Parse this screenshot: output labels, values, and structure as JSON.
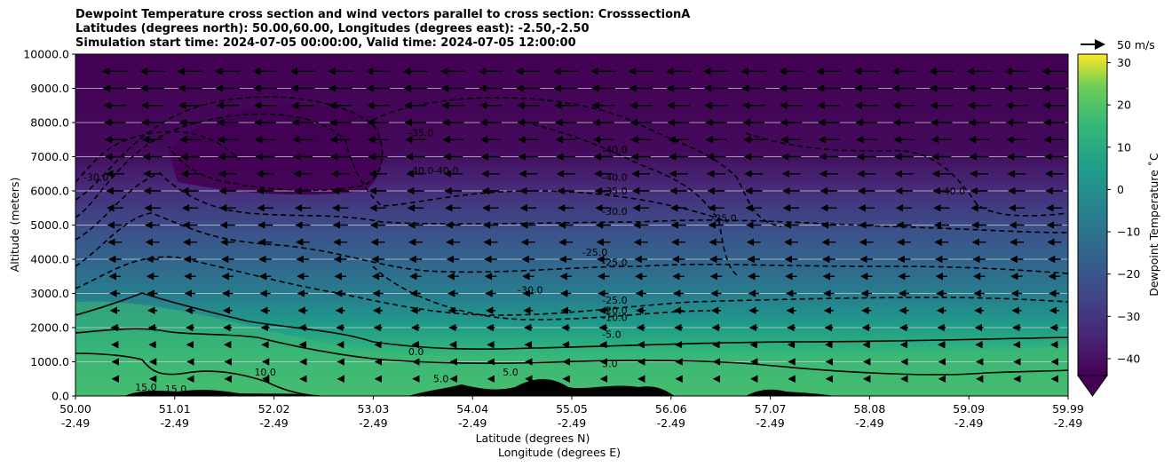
{
  "chart_data": {
    "type": "heatmap",
    "title_lines": [
      "Dewpoint Temperature cross section and wind vectors parallel to cross section: CrosssectionA",
      "Latitudes (degrees north): 50.00,60.00, Longitudes (degrees east): -2.50,-2.50",
      "Simulation start time: 2024-07-05 00:00:00, Valid time: 2024-07-05 12:00:00"
    ],
    "xlabel_lines": [
      "Latitude (degrees N)",
      "Longitude (degrees E)"
    ],
    "ylabel": "Altitude (meters)",
    "x_ticks": [
      {
        "lat": "50.00",
        "lon": "-2.49"
      },
      {
        "lat": "51.01",
        "lon": "-2.49"
      },
      {
        "lat": "52.02",
        "lon": "-2.49"
      },
      {
        "lat": "53.03",
        "lon": "-2.49"
      },
      {
        "lat": "54.04",
        "lon": "-2.49"
      },
      {
        "lat": "55.05",
        "lon": "-2.49"
      },
      {
        "lat": "56.06",
        "lon": "-2.49"
      },
      {
        "lat": "57.07",
        "lon": "-2.49"
      },
      {
        "lat": "58.08",
        "lon": "-2.49"
      },
      {
        "lat": "59.09",
        "lon": "-2.49"
      },
      {
        "lat": "59.99",
        "lon": "-2.49"
      }
    ],
    "y_ticks": [
      "0.0",
      "1000.0",
      "2000.0",
      "3000.0",
      "4000.0",
      "5000.0",
      "6000.0",
      "7000.0",
      "8000.0",
      "9000.0",
      "10000.0"
    ],
    "xlim": [
      50.0,
      59.99
    ],
    "ylim": [
      0,
      10000
    ],
    "grid": "horizontal",
    "colorbar": {
      "label": "Dewpoint Temperature $^\\circ$C",
      "label_display": "Dewpoint Temperature ˚C",
      "ticks": [
        "30",
        "20",
        "10",
        "0",
        "−10",
        "−20",
        "−30",
        "−40"
      ],
      "range": [
        -44,
        32
      ],
      "extend": "min",
      "colormap": "viridis"
    },
    "quiver_key": "50 m/s",
    "contour_labels": [
      {
        "text": "-30.0",
        "lat": 50.08,
        "alt": 6300
      },
      {
        "text": "-35.0",
        "lat": 53.35,
        "alt": 7600
      },
      {
        "text": "-40.0",
        "lat": 53.35,
        "alt": 6500
      },
      {
        "text": "-40.0",
        "lat": 53.6,
        "alt": 6500
      },
      {
        "text": "-40.0",
        "lat": 55.3,
        "alt": 7100
      },
      {
        "text": "-40.0",
        "lat": 55.3,
        "alt": 6300
      },
      {
        "text": "-35.0",
        "lat": 55.3,
        "alt": 5900
      },
      {
        "text": "-30.0",
        "lat": 55.3,
        "alt": 5300
      },
      {
        "text": "-25.0",
        "lat": 56.4,
        "alt": 5100
      },
      {
        "text": "-40.0",
        "lat": 58.7,
        "alt": 5900
      },
      {
        "text": "-25.0",
        "lat": 55.1,
        "alt": 4100
      },
      {
        "text": "-25.0",
        "lat": 55.3,
        "alt": 3800
      },
      {
        "text": "-30.0",
        "lat": 54.45,
        "alt": 3000
      },
      {
        "text": "-25.0",
        "lat": 55.3,
        "alt": 2700
      },
      {
        "text": "-20.0",
        "lat": 55.3,
        "alt": 2400
      },
      {
        "text": "-10.0",
        "lat": 55.3,
        "alt": 2200
      },
      {
        "text": "-5.0",
        "lat": 55.3,
        "alt": 1700
      },
      {
        "text": "0.0",
        "lat": 53.35,
        "alt": 1200
      },
      {
        "text": "5.0",
        "lat": 55.3,
        "alt": 850
      },
      {
        "text": "5.0",
        "lat": 54.3,
        "alt": 600
      },
      {
        "text": "5.0",
        "lat": 53.6,
        "alt": 400
      },
      {
        "text": "10.0",
        "lat": 51.8,
        "alt": 600
      },
      {
        "text": "15.0",
        "lat": 50.6,
        "alt": 150
      },
      {
        "text": "15.0",
        "lat": 50.9,
        "alt": 100
      }
    ]
  }
}
